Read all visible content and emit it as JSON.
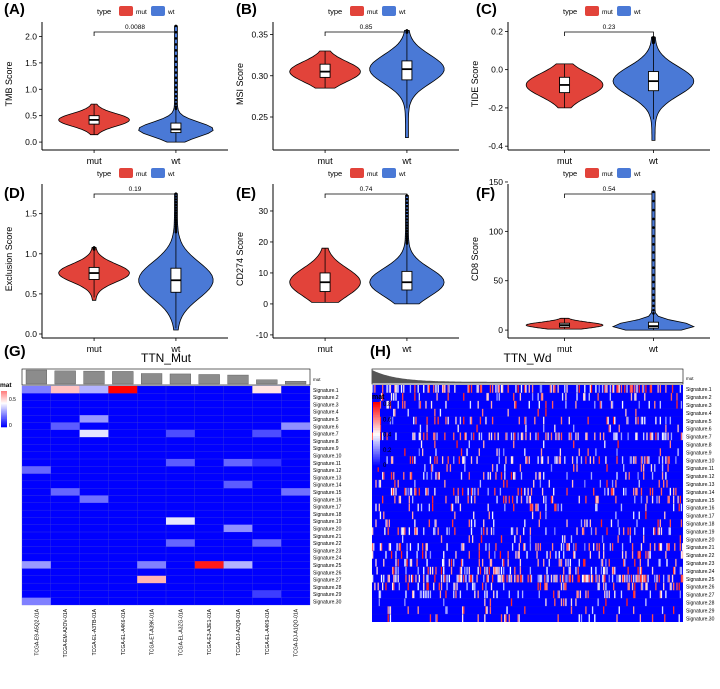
{
  "colors": {
    "mut": "#e2433a",
    "wt": "#4a79d6",
    "heat_high": "#ff0000",
    "heat_mid": "#ffffff",
    "heat_low": "#0000ff"
  },
  "violin_panels": [
    {
      "tag": "(A)",
      "ylabel": "TMB Score",
      "pval": "0.0088",
      "yticks": [
        "0.0",
        "0.5",
        "1.0",
        "1.5",
        "2.0"
      ],
      "ylim": [
        -0.15,
        2.35
      ]
    },
    {
      "tag": "(B)",
      "ylabel": "MSI Score",
      "pval": "0.85",
      "yticks": [
        "0.25",
        "0.30",
        "0.35"
      ],
      "ylim": [
        0.21,
        0.37
      ]
    },
    {
      "tag": "(C)",
      "ylabel": "TIDE Score",
      "pval": "0.23",
      "yticks": [
        "-0.4",
        "-0.2",
        "0.0",
        "0.2"
      ],
      "ylim": [
        -0.42,
        0.27
      ]
    },
    {
      "tag": "(D)",
      "ylabel": "Exclusion Score",
      "pval": "0.19",
      "yticks": [
        "0.0",
        "0.5",
        "1.0",
        "1.5"
      ],
      "ylim": [
        -0.05,
        1.92
      ]
    },
    {
      "tag": "(E)",
      "ylabel": "CD274 Score",
      "pval": "0.74",
      "yticks": [
        "-10",
        "0",
        "10",
        "20",
        "30"
      ],
      "ylim": [
        -11,
        40
      ]
    },
    {
      "tag": "(F)",
      "ylabel": "CD8 Score",
      "pval": "0.54",
      "yticks": [
        "0",
        "50",
        "100",
        "150"
      ],
      "ylim": [
        -8,
        152
      ]
    }
  ],
  "legend": {
    "title": "type",
    "items": [
      "mut",
      "wt"
    ]
  },
  "groups": [
    "mut",
    "wt"
  ],
  "chart_data": [
    {
      "type": "violin",
      "title": "",
      "ylabel": "TMB Score",
      "categories": [
        "mut",
        "wt"
      ],
      "ylim": [
        -0.15,
        2.35
      ],
      "pvalue": "0.0088",
      "series": [
        {
          "name": "mut",
          "min": 0.14,
          "q1": 0.34,
          "median": 0.42,
          "q3": 0.5,
          "max": 0.72
        },
        {
          "name": "wt",
          "min": 0.0,
          "q1": 0.18,
          "median": 0.24,
          "q3": 0.36,
          "max": 2.2
        }
      ]
    },
    {
      "type": "violin",
      "title": "",
      "ylabel": "MSI Score",
      "categories": [
        "mut",
        "wt"
      ],
      "ylim": [
        0.21,
        0.37
      ],
      "pvalue": "0.85",
      "series": [
        {
          "name": "mut",
          "min": 0.285,
          "q1": 0.298,
          "median": 0.305,
          "q3": 0.314,
          "max": 0.33
        },
        {
          "name": "wt",
          "min": 0.225,
          "q1": 0.295,
          "median": 0.308,
          "q3": 0.318,
          "max": 0.355
        }
      ]
    },
    {
      "type": "violin",
      "title": "",
      "ylabel": "TIDE Score",
      "categories": [
        "mut",
        "wt"
      ],
      "ylim": [
        -0.42,
        0.27
      ],
      "pvalue": "0.23",
      "series": [
        {
          "name": "mut",
          "min": -0.2,
          "q1": -0.12,
          "median": -0.08,
          "q3": -0.04,
          "max": 0.03
        },
        {
          "name": "wt",
          "min": -0.37,
          "q1": -0.11,
          "median": -0.06,
          "q3": -0.01,
          "max": 0.17
        }
      ]
    },
    {
      "type": "violin",
      "title": "",
      "ylabel": "Exclusion Score",
      "categories": [
        "mut",
        "wt"
      ],
      "ylim": [
        -0.05,
        1.92
      ],
      "pvalue": "0.19",
      "series": [
        {
          "name": "mut",
          "min": 0.42,
          "q1": 0.68,
          "median": 0.76,
          "q3": 0.83,
          "max": 1.08
        },
        {
          "name": "wt",
          "min": 0.05,
          "q1": 0.52,
          "median": 0.67,
          "q3": 0.82,
          "max": 1.75
        }
      ]
    },
    {
      "type": "violin",
      "title": "",
      "ylabel": "CD274 Score",
      "categories": [
        "mut",
        "wt"
      ],
      "ylim": [
        -11,
        40
      ],
      "pvalue": "0.74",
      "series": [
        {
          "name": "mut",
          "min": 0.5,
          "q1": 4,
          "median": 7,
          "q3": 10,
          "max": 18
        },
        {
          "name": "wt",
          "min": 0,
          "q1": 4.5,
          "median": 7,
          "q3": 10.5,
          "max": 35
        }
      ]
    },
    {
      "type": "violin",
      "title": "",
      "ylabel": "CD8 Score",
      "categories": [
        "mut",
        "wt"
      ],
      "ylim": [
        -8,
        152
      ],
      "pvalue": "0.54",
      "series": [
        {
          "name": "mut",
          "min": 1,
          "q1": 3,
          "median": 5,
          "q3": 7,
          "max": 12
        },
        {
          "name": "wt",
          "min": 0,
          "q1": 2,
          "median": 4,
          "q3": 8,
          "max": 140
        }
      ]
    },
    {
      "type": "heatmap",
      "title": "TTN_Mut",
      "legend_title": "mat",
      "legend_ticks": [
        "0.5",
        "0"
      ],
      "columns": [
        "TCGA-E9-A5Q2-01A",
        "TCGA-EM-A2OV-01A",
        "TCGA-EL-A3TB-01A",
        "TCGA-EL-A4K6-01A",
        "TCGA-ET-A39K-01A",
        "TCGA-EL-A3ZG-01A",
        "TCGA-E3-A3E1-01A",
        "TCGA-DJ-A2Q9-01A",
        "TCGA-EL-A4K9-01A",
        "TCGA-DJ-A1QO-01A"
      ],
      "rows": [
        "Signature.1",
        "Signature.2",
        "Signature.3",
        "Signature.4",
        "Signature.5",
        "Signature.6",
        "Signature.7",
        "Signature.8",
        "Signature.9",
        "Signature.10",
        "Signature.11",
        "Signature.12",
        "Signature.13",
        "Signature.14",
        "Signature.15",
        "Signature.16",
        "Signature.17",
        "Signature.18",
        "Signature.19",
        "Signature.20",
        "Signature.21",
        "Signature.22",
        "Signature.23",
        "Signature.24",
        "Signature.25",
        "Signature.26",
        "Signature.27",
        "Signature.28",
        "Signature.29",
        "Signature.30"
      ],
      "top_bar": [
        1.0,
        0.94,
        0.92,
        0.9,
        0.75,
        0.72,
        0.68,
        0.64,
        0.3,
        0.2
      ],
      "cells": [
        {
          "row": 0,
          "col": 0,
          "v": 0.25
        },
        {
          "row": 0,
          "col": 1,
          "v": 0.62
        },
        {
          "row": 0,
          "col": 2,
          "v": 0.35
        },
        {
          "row": 0,
          "col": 3,
          "v": 1.0
        },
        {
          "row": 0,
          "col": 8,
          "v": 0.55
        },
        {
          "row": 4,
          "col": 2,
          "v": 0.3
        },
        {
          "row": 5,
          "col": 1,
          "v": 0.18
        },
        {
          "row": 5,
          "col": 9,
          "v": 0.28
        },
        {
          "row": 6,
          "col": 2,
          "v": 0.45
        },
        {
          "row": 6,
          "col": 5,
          "v": 0.15
        },
        {
          "row": 6,
          "col": 8,
          "v": 0.15
        },
        {
          "row": 10,
          "col": 5,
          "v": 0.18
        },
        {
          "row": 10,
          "col": 7,
          "v": 0.2
        },
        {
          "row": 10,
          "col": 8,
          "v": 0.1
        },
        {
          "row": 11,
          "col": 0,
          "v": 0.2
        },
        {
          "row": 13,
          "col": 7,
          "v": 0.18
        },
        {
          "row": 14,
          "col": 1,
          "v": 0.2
        },
        {
          "row": 14,
          "col": 9,
          "v": 0.22
        },
        {
          "row": 15,
          "col": 2,
          "v": 0.22
        },
        {
          "row": 18,
          "col": 5,
          "v": 0.45
        },
        {
          "row": 19,
          "col": 7,
          "v": 0.28
        },
        {
          "row": 21,
          "col": 5,
          "v": 0.2
        },
        {
          "row": 21,
          "col": 8,
          "v": 0.2
        },
        {
          "row": 24,
          "col": 0,
          "v": 0.3
        },
        {
          "row": 24,
          "col": 4,
          "v": 0.25
        },
        {
          "row": 24,
          "col": 6,
          "v": 0.95
        },
        {
          "row": 24,
          "col": 7,
          "v": 0.35
        },
        {
          "row": 26,
          "col": 4,
          "v": 0.65
        },
        {
          "row": 28,
          "col": 8,
          "v": 0.12
        },
        {
          "row": 29,
          "col": 0,
          "v": 0.25
        }
      ]
    },
    {
      "type": "heatmap",
      "title": "TTN_Wd",
      "legend_title": "mat",
      "legend_ticks": [
        "0.8",
        "0.6",
        "0.4",
        "0.2",
        "0"
      ],
      "rows": [
        "Signature.1",
        "Signature.2",
        "Signature.3",
        "Signature.4",
        "Signature.5",
        "Signature.6",
        "Signature.7",
        "Signature.8",
        "Signature.9",
        "Signature.10",
        "Signature.11",
        "Signature.12",
        "Signature.13",
        "Signature.14",
        "Signature.15",
        "Signature.16",
        "Signature.17",
        "Signature.18",
        "Signature.19",
        "Signature.20",
        "Signature.21",
        "Signature.22",
        "Signature.23",
        "Signature.24",
        "Signature.25",
        "Signature.26",
        "Signature.27",
        "Signature.28",
        "Signature.29",
        "Signature.30"
      ],
      "top_bar_label": "mut"
    }
  ],
  "heatmap_g": {
    "tag": "(G)",
    "title": "TTN_Mut",
    "legend_title": "mat",
    "bar_label": "mut"
  },
  "heatmap_h": {
    "tag": "(H)",
    "title": "TTN_Wd",
    "legend_title": "mat",
    "bar_label": "mut"
  }
}
